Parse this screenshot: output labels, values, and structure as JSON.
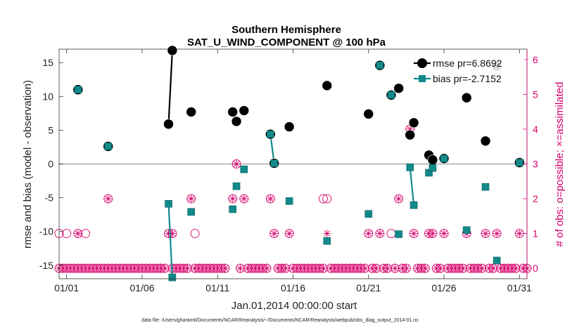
{
  "chart_data": {
    "type": "scatter",
    "title": "Southern Hemisphere",
    "subtitle": "SAT_U_WIND_COMPONENT @ 100 hPa",
    "xlabel": "Jan.01,2014 00:00:00 start",
    "ylabel": "rmse and bias (model - observation)",
    "ylabel_right": "# of obs: o=possible; ×=assimilated",
    "xlim": [
      0.5,
      31.5
    ],
    "ylim": [
      -17,
      17
    ],
    "ylim_right": [
      -0.3,
      6.3
    ],
    "x_ticks": [
      1,
      6,
      11,
      16,
      21,
      26,
      31
    ],
    "x_tick_labels": [
      "01/01",
      "01/06",
      "01/11",
      "01/16",
      "01/21",
      "01/26",
      "01/31"
    ],
    "y_ticks": [
      -15,
      -10,
      -5,
      0,
      5,
      10,
      15
    ],
    "y_right_ticks": [
      0,
      1,
      2,
      3,
      4,
      5,
      6
    ],
    "footer": "data file: /Users/gharamti/Documents/NCAR/Reanalysis/~/Documents/NCAR/Reanalysis/webpub/obs_diag_output_2014-01.nc",
    "colors": {
      "rmse": "#000000",
      "bias": "#138a8a",
      "obs": "#d6006a",
      "zero_line": "#aaaaaa"
    },
    "legend": [
      {
        "label": "rmse pr=6.8692",
        "series": "rmse"
      },
      {
        "label": "bias pr=-2.7152",
        "series": "bias"
      }
    ],
    "series": [
      {
        "name": "rmse",
        "points": [
          [
            1.75,
            11.0
          ],
          [
            3.75,
            2.6
          ],
          [
            7.75,
            5.9
          ],
          [
            8.0,
            16.8
          ],
          [
            9.25,
            7.7
          ],
          [
            12.0,
            7.7
          ],
          [
            12.25,
            6.3
          ],
          [
            12.75,
            7.9
          ],
          [
            14.5,
            4.4
          ],
          [
            14.75,
            0.1
          ],
          [
            15.75,
            5.5
          ],
          [
            18.25,
            11.6
          ],
          [
            21.0,
            7.4
          ],
          [
            21.75,
            14.6
          ],
          [
            22.5,
            10.2
          ],
          [
            23.0,
            11.2
          ],
          [
            23.75,
            4.3
          ],
          [
            24.0,
            6.1
          ],
          [
            25.0,
            1.3
          ],
          [
            25.25,
            0.6
          ],
          [
            26.0,
            0.8
          ],
          [
            27.5,
            9.8
          ],
          [
            28.75,
            3.4
          ],
          [
            29.5,
            14.5
          ],
          [
            31.0,
            0.2
          ]
        ],
        "segments": [
          [
            [
              7.75,
              5.9
            ],
            [
              8.0,
              16.8
            ]
          ]
        ]
      },
      {
        "name": "bias",
        "points": [
          [
            1.75,
            11.0
          ],
          [
            3.75,
            2.6
          ],
          [
            7.75,
            -5.9
          ],
          [
            8.0,
            -16.8
          ],
          [
            9.25,
            -7.1
          ],
          [
            12.0,
            -6.7
          ],
          [
            12.25,
            -3.3
          ],
          [
            12.75,
            -0.8
          ],
          [
            14.5,
            4.4
          ],
          [
            14.75,
            0.1
          ],
          [
            15.75,
            -5.5
          ],
          [
            18.25,
            -11.4
          ],
          [
            21.0,
            -7.4
          ],
          [
            21.75,
            14.6
          ],
          [
            22.5,
            10.2
          ],
          [
            23.0,
            -10.4
          ],
          [
            23.75,
            -0.5
          ],
          [
            24.0,
            -6.1
          ],
          [
            25.0,
            -1.3
          ],
          [
            25.25,
            -0.6
          ],
          [
            26.0,
            0.8
          ],
          [
            27.5,
            -9.8
          ],
          [
            28.75,
            -3.4
          ],
          [
            29.5,
            -14.3
          ],
          [
            31.0,
            0.2
          ]
        ],
        "segments": [
          [
            [
              7.75,
              -5.9
            ],
            [
              8.0,
              -16.8
            ]
          ],
          [
            [
              14.5,
              4.4
            ],
            [
              14.75,
              0.1
            ]
          ],
          [
            [
              23.75,
              -0.5
            ],
            [
              24.0,
              -6.1
            ]
          ],
          [
            [
              25.0,
              -1.3
            ],
            [
              25.25,
              -0.6
            ]
          ]
        ]
      }
    ],
    "obs_possible": [
      [
        0.5,
        1
      ],
      [
        1.0,
        1
      ],
      [
        1.75,
        1
      ],
      [
        2.25,
        1
      ],
      [
        3.75,
        2
      ],
      [
        7.75,
        1
      ],
      [
        8.0,
        1
      ],
      [
        9.25,
        2
      ],
      [
        9.5,
        1
      ],
      [
        12.0,
        2
      ],
      [
        12.25,
        3
      ],
      [
        12.75,
        2
      ],
      [
        14.5,
        2
      ],
      [
        14.75,
        1
      ],
      [
        15.75,
        1
      ],
      [
        18.0,
        2
      ],
      [
        18.25,
        2
      ],
      [
        21.0,
        1
      ],
      [
        21.75,
        1
      ],
      [
        22.5,
        1
      ],
      [
        23.0,
        2
      ],
      [
        23.75,
        4
      ],
      [
        24.0,
        1
      ],
      [
        25.0,
        1
      ],
      [
        25.25,
        1
      ],
      [
        26.0,
        1
      ],
      [
        27.5,
        1
      ],
      [
        28.75,
        1
      ],
      [
        29.5,
        1
      ],
      [
        31.0,
        1
      ]
    ],
    "obs_assimilated": [
      [
        1.75,
        1
      ],
      [
        3.75,
        2
      ],
      [
        7.75,
        1
      ],
      [
        8.0,
        1
      ],
      [
        9.25,
        2
      ],
      [
        12.0,
        2
      ],
      [
        12.25,
        3
      ],
      [
        12.75,
        2
      ],
      [
        14.5,
        2
      ],
      [
        14.75,
        1
      ],
      [
        15.75,
        1
      ],
      [
        18.25,
        1
      ],
      [
        21.0,
        1
      ],
      [
        21.75,
        1
      ],
      [
        23.0,
        2
      ],
      [
        23.75,
        4
      ],
      [
        24.0,
        1
      ],
      [
        25.0,
        1
      ],
      [
        25.25,
        1
      ],
      [
        26.0,
        1
      ],
      [
        27.5,
        1
      ],
      [
        28.75,
        1
      ],
      [
        29.5,
        1
      ],
      [
        31.0,
        1
      ]
    ],
    "obs_zero_x": [
      0.5,
      0.75,
      1.0,
      1.25,
      1.5,
      1.75,
      2.0,
      2.25,
      2.5,
      2.75,
      3.0,
      3.25,
      3.5,
      3.75,
      4.0,
      4.25,
      4.5,
      4.75,
      5.0,
      5.25,
      5.5,
      5.75,
      6.0,
      6.25,
      6.5,
      6.75,
      7.0,
      7.25,
      7.5,
      8.0,
      8.25,
      8.5,
      8.75,
      9.0,
      9.5,
      9.75,
      10.0,
      10.25,
      10.5,
      10.75,
      11.0,
      11.25,
      11.5,
      12.5,
      13.0,
      13.25,
      13.5,
      13.75,
      14.0,
      14.25,
      15.0,
      15.25,
      15.5,
      16.0,
      16.25,
      16.5,
      16.75,
      17.0,
      17.25,
      17.5,
      17.75,
      18.0,
      18.5,
      18.75,
      19.0,
      19.25,
      19.5,
      19.75,
      20.0,
      20.25,
      20.5,
      20.75,
      21.25,
      21.5,
      22.0,
      22.25,
      22.75,
      23.25,
      23.5,
      24.25,
      24.5,
      24.75,
      25.5,
      25.75,
      26.25,
      26.5,
      26.75,
      27.0,
      27.25,
      27.75,
      28.0,
      28.25,
      28.5,
      29.0,
      29.25,
      29.75,
      30.0,
      30.25,
      30.5,
      30.75,
      31.25,
      31.5
    ]
  }
}
